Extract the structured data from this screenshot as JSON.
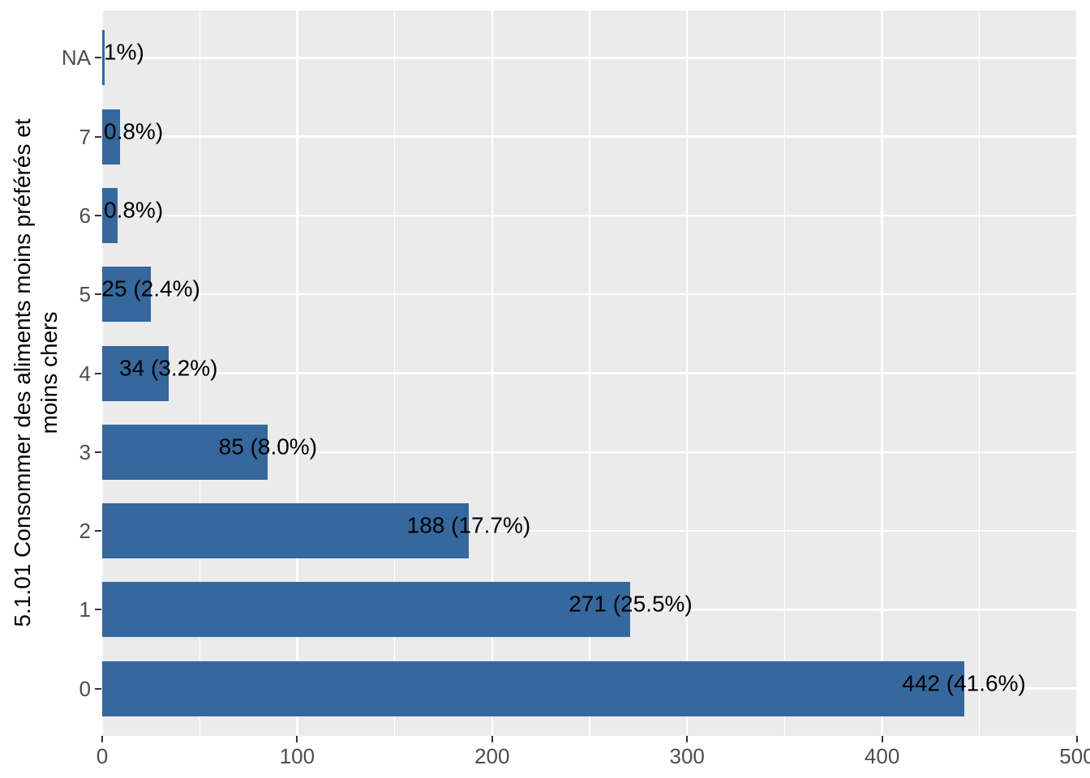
{
  "chart_data": {
    "type": "bar",
    "orientation": "horizontal",
    "title": "",
    "xlabel": "",
    "ylabel_line1": "5.1.01 Consommer des aliments moins préférés et",
    "ylabel_line2": "moins chers",
    "categories": [
      "NA",
      "7",
      "6",
      "5",
      "4",
      "3",
      "2",
      "1",
      "0"
    ],
    "values": [
      1,
      9,
      8,
      25,
      34,
      85,
      188,
      271,
      442
    ],
    "bar_labels": [
      "1%)",
      "0.8%)",
      "0.8%)",
      "25 (2.4%)",
      "34 (3.2%)",
      "85 (8.0%)",
      "188 (17.7%)",
      "271 (25.5%)",
      "442 (41.6%)"
    ],
    "bar_label_at_panel_edge": [
      true,
      true,
      true,
      false,
      false,
      false,
      false,
      false,
      false
    ],
    "xlim": [
      0,
      500
    ],
    "x_major_ticks": [
      "0",
      "100",
      "200",
      "300",
      "400",
      "500"
    ],
    "x_major_values": [
      0,
      100,
      200,
      300,
      400,
      500
    ],
    "x_minor_values": [
      50,
      150,
      250,
      350,
      450
    ],
    "grid": true,
    "legend": "none",
    "colors": {
      "bar": "#35689D",
      "panel_background": "#EBEBEB",
      "gridline": "#FFFFFF",
      "axis_text": "#4D4D4D",
      "tick_mark": "#333333",
      "bar_label_text": "#000000",
      "axis_title_text": "#000000",
      "figure_background": "#FFFFFF"
    }
  }
}
